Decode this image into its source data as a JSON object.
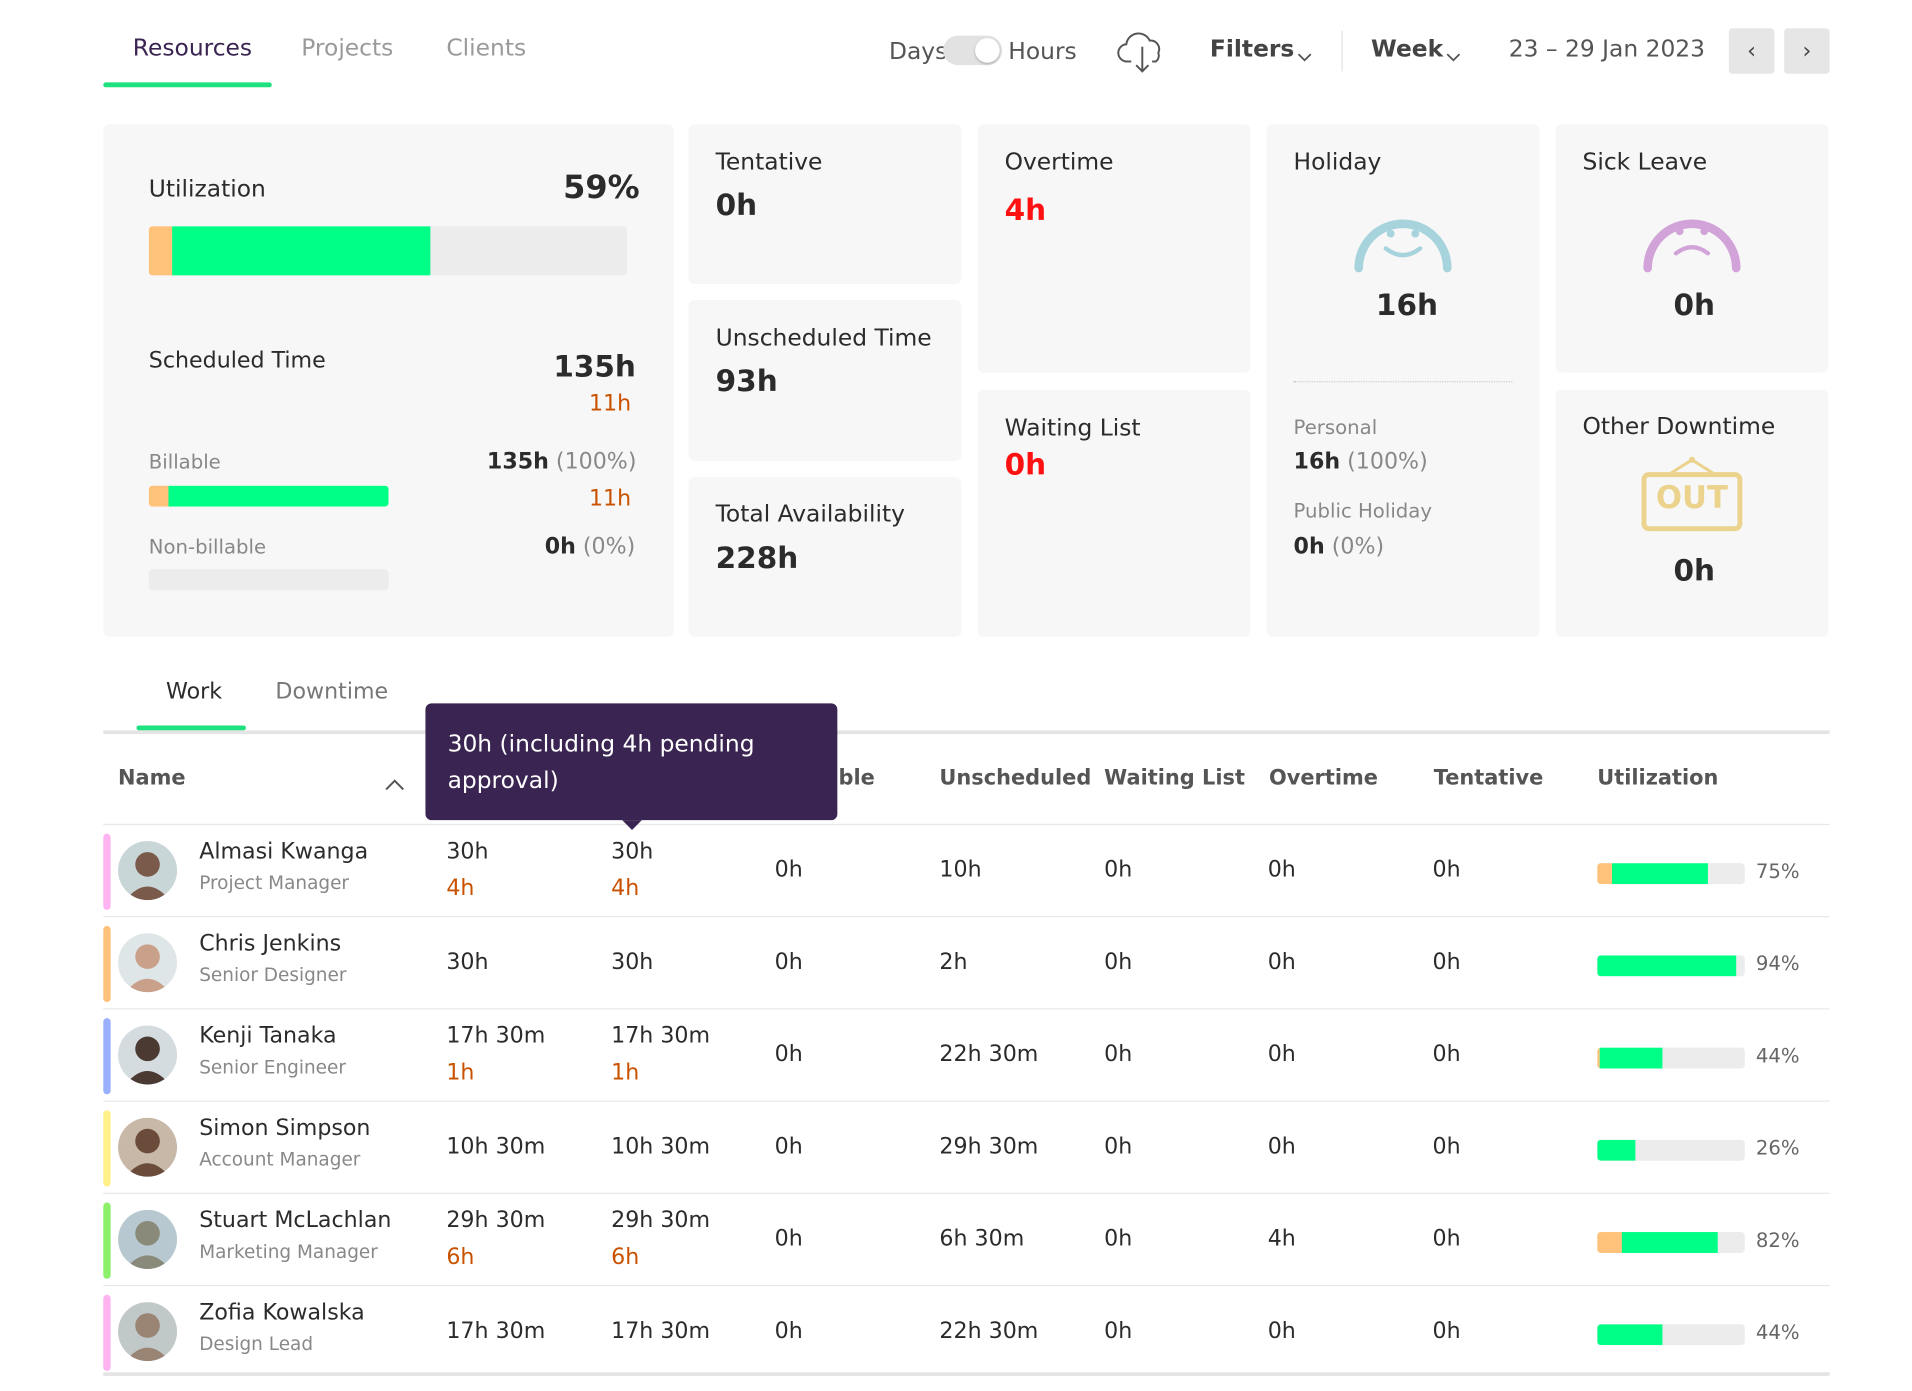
{
  "tabs": [
    "Resources",
    "Projects",
    "Clients"
  ],
  "header": {
    "toggle_left": "Days",
    "toggle_right": "Hours",
    "filters": "Filters",
    "period": "Week",
    "date_range": "23 – 29 Jan 2023",
    "prev": "‹",
    "next": "›"
  },
  "utilization": {
    "title": "Utilization",
    "value": "59%",
    "pending_fraction": 0.05,
    "scheduled_fraction": 0.54,
    "scheduled_label": "Scheduled Time",
    "scheduled_value": "135h",
    "scheduled_pending": "11h",
    "billable_label": "Billable",
    "billable_value": "135h",
    "billable_pct": "(100%)",
    "billable_pending": "11h",
    "billable_pending_fraction": 0.08,
    "billable_fill_fraction": 1.0,
    "nonbillable_label": "Non-billable",
    "nonbillable_value": "0h",
    "nonbillable_pct": "(0%)"
  },
  "cards": {
    "tentative": {
      "title": "Tentative",
      "value": "0h"
    },
    "unscheduled": {
      "title": "Unscheduled Time",
      "value": "93h"
    },
    "total": {
      "title": "Total Availability",
      "value": "228h"
    },
    "overtime": {
      "title": "Overtime",
      "value": "4h"
    },
    "waiting": {
      "title": "Waiting List",
      "value": "0h"
    },
    "holiday": {
      "title": "Holiday",
      "value": "16h",
      "personal_label": "Personal",
      "personal_value": "16h",
      "personal_pct": "(100%)",
      "public_label": "Public Holiday",
      "public_value": "0h",
      "public_pct": "(0%)"
    },
    "sick": {
      "title": "Sick Leave",
      "value": "0h"
    },
    "other": {
      "title": "Other Downtime",
      "value": "0h",
      "sign_text": "OUT"
    }
  },
  "subtabs": [
    "Work",
    "Downtime"
  ],
  "table": {
    "headers": [
      "Name",
      "",
      "",
      "Billable",
      "Unscheduled",
      "Waiting List",
      "Overtime",
      "Tentative",
      "Utilization"
    ],
    "rows": [
      {
        "name": "Almasi Kwanga",
        "role": "Project Manager",
        "stripe": "#ffb3f0",
        "sched": "30h",
        "sched_sub": "4h",
        "bill": "30h",
        "bill_sub": "4h",
        "nonbill": "0h",
        "unsched": "10h",
        "waiting": "0h",
        "overtime": "0h",
        "tentative": "0h",
        "util": "75%",
        "pending": 0.1,
        "fill": 0.65
      },
      {
        "name": "Chris Jenkins",
        "role": "Senior Designer",
        "stripe": "#ffc27a",
        "sched": "30h",
        "sched_sub": "",
        "bill": "30h",
        "bill_sub": "",
        "nonbill": "0h",
        "unsched": "2h",
        "waiting": "0h",
        "overtime": "0h",
        "tentative": "0h",
        "util": "94%",
        "pending": 0,
        "fill": 0.94
      },
      {
        "name": "Kenji Tanaka",
        "role": "Senior Engineer",
        "stripe": "#9ab0ff",
        "sched": "17h 30m",
        "sched_sub": "1h",
        "bill": "17h 30m",
        "bill_sub": "1h",
        "nonbill": "0h",
        "unsched": "22h 30m",
        "waiting": "0h",
        "overtime": "0h",
        "tentative": "0h",
        "util": "44%",
        "pending": 0.02,
        "fill": 0.42
      },
      {
        "name": "Simon Simpson",
        "role": "Account Manager",
        "stripe": "#fff08a",
        "sched": "10h 30m",
        "sched_sub": "",
        "bill": "10h 30m",
        "bill_sub": "",
        "nonbill": "0h",
        "unsched": "29h 30m",
        "waiting": "0h",
        "overtime": "0h",
        "tentative": "0h",
        "util": "26%",
        "pending": 0,
        "fill": 0.26
      },
      {
        "name": "Stuart McLachlan",
        "role": "Marketing Manager",
        "stripe": "#8cf06a",
        "sched": "29h 30m",
        "sched_sub": "6h",
        "bill": "29h 30m",
        "bill_sub": "6h",
        "nonbill": "0h",
        "unsched": "6h 30m",
        "waiting": "0h",
        "overtime": "4h",
        "tentative": "0h",
        "util": "82%",
        "pending": 0.17,
        "fill": 0.65
      },
      {
        "name": "Zofia Kowalska",
        "role": "Design Lead",
        "stripe": "#ffb3f0",
        "sched": "17h 30m",
        "sched_sub": "",
        "bill": "17h 30m",
        "bill_sub": "",
        "nonbill": "0h",
        "unsched": "22h 30m",
        "waiting": "0h",
        "overtime": "0h",
        "tentative": "0h",
        "util": "44%",
        "pending": 0,
        "fill": 0.44
      }
    ]
  },
  "tooltip": "30h (including 4h pending approval)",
  "colors": {
    "accent": "#1de27f",
    "fill": "#00ff86",
    "pending": "#ffc27a",
    "danger": "#ff1111",
    "tooltip": "#3a2452"
  }
}
